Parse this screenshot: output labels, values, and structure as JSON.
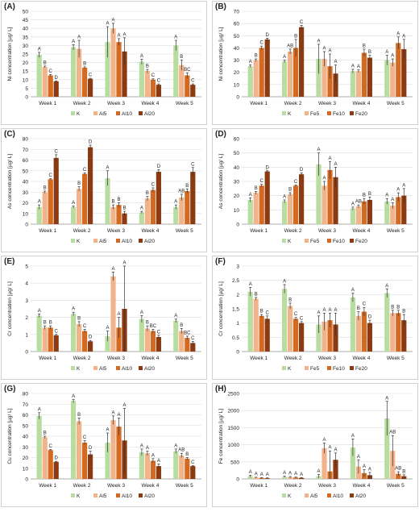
{
  "colors": [
    "#b9dca0",
    "#f2b38a",
    "#d46a22",
    "#8b3a12"
  ],
  "error_color": "#333333",
  "chart_data": [
    {
      "id": "A",
      "type": "bar",
      "panel_label": "(A)",
      "ylabel": "Ni concentration [µg/ L]",
      "ylim": [
        0,
        50
      ],
      "yticks": [
        0,
        5,
        10,
        15,
        20,
        25,
        30,
        35,
        40,
        45,
        50
      ],
      "categories": [
        "Week 1",
        "Week 2",
        "Week 3",
        "Week 4",
        "Week 5"
      ],
      "series": [
        {
          "name": "K",
          "values": [
            24.5,
            29,
            32,
            20.5,
            30
          ],
          "errors": [
            1.5,
            1.5,
            9,
            1.5,
            3
          ],
          "letters": [
            "A",
            "A",
            "A",
            "A",
            "A"
          ]
        },
        {
          "name": "Al5",
          "values": [
            17.5,
            28,
            40,
            15,
            18.5
          ],
          "errors": [
            0.5,
            5,
            3,
            1,
            3
          ],
          "letters": [
            "B",
            "A",
            "A",
            "B",
            "B"
          ]
        },
        {
          "name": "Al10",
          "values": [
            12.5,
            17,
            32,
            10,
            12.5
          ],
          "errors": [
            0.5,
            0.5,
            2,
            0.5,
            1.5
          ],
          "letters": [
            "C",
            "B",
            "A",
            "C",
            "BC"
          ]
        },
        {
          "name": "Al20",
          "values": [
            9,
            10.5,
            26.5,
            7,
            7
          ],
          "errors": [
            0.3,
            0.3,
            8,
            0.5,
            0.5
          ],
          "letters": [
            "D",
            "C",
            "A",
            "C",
            "C"
          ]
        }
      ]
    },
    {
      "id": "B",
      "type": "bar",
      "panel_label": "(B)",
      "ylabel": "Ni concentration [µg/ L]",
      "ylim": [
        0,
        70
      ],
      "yticks": [
        0,
        10,
        20,
        30,
        40,
        50,
        60,
        70
      ],
      "categories": [
        "Week 1",
        "Week 2",
        "Week 3",
        "Week 4",
        "Week 5"
      ],
      "series": [
        {
          "name": "K",
          "values": [
            25,
            29,
            31,
            21,
            30
          ],
          "errors": [
            1,
            1,
            12,
            1.5,
            4
          ],
          "letters": [
            "A",
            "A",
            "A",
            "A",
            "A"
          ]
        },
        {
          "name": "Fe5",
          "values": [
            30,
            37,
            31,
            21,
            28
          ],
          "errors": [
            1,
            2,
            6,
            1,
            3
          ],
          "letters": [
            "B",
            "AB",
            "A",
            "A",
            "A"
          ]
        },
        {
          "name": "Fe10",
          "values": [
            40,
            40,
            25,
            36,
            44
          ],
          "errors": [
            1.5,
            7,
            10,
            3,
            5
          ],
          "letters": [
            "C",
            "B",
            "A",
            "B",
            "A"
          ]
        },
        {
          "name": "Fe20",
          "values": [
            47,
            57,
            19,
            32,
            39
          ],
          "errors": [
            1,
            1.5,
            7,
            2,
            8
          ],
          "letters": [
            "D",
            "C",
            "A",
            "B",
            "A"
          ]
        }
      ]
    },
    {
      "id": "C",
      "type": "bar",
      "panel_label": "(C)",
      "ylabel": "As concentration [µg/ L]",
      "ylim": [
        0,
        80
      ],
      "yticks": [
        0,
        10,
        20,
        30,
        40,
        50,
        60,
        70,
        80
      ],
      "categories": [
        "Week 1",
        "Week 2",
        "Week 3",
        "Week 4",
        "Week 5"
      ],
      "series": [
        {
          "name": "K",
          "values": [
            16,
            16,
            43,
            11,
            16
          ],
          "errors": [
            2,
            1,
            7,
            1,
            2
          ],
          "letters": [
            "A",
            "A",
            "A",
            "A",
            "A"
          ]
        },
        {
          "name": "Al5",
          "values": [
            30,
            33,
            16,
            24,
            25
          ],
          "errors": [
            1,
            2,
            2,
            2,
            3
          ],
          "letters": [
            "B",
            "B",
            "B",
            "B",
            "AB"
          ]
        },
        {
          "name": "Al10",
          "values": [
            42,
            47,
            18,
            32,
            31
          ],
          "errors": [
            0.5,
            1,
            2,
            2,
            2
          ],
          "letters": [
            "C",
            "C",
            "B",
            "C",
            "B"
          ]
        },
        {
          "name": "Al20",
          "values": [
            62,
            72,
            10,
            49,
            49
          ],
          "errors": [
            3,
            2,
            2,
            2,
            4
          ],
          "letters": [
            "C",
            "D",
            "B",
            "D",
            "C"
          ]
        }
      ]
    },
    {
      "id": "D",
      "type": "bar",
      "panel_label": "(D)",
      "ylabel": "As concentration [µg/ L]",
      "ylim": [
        0,
        60
      ],
      "yticks": [
        0,
        10,
        20,
        30,
        40,
        50,
        60
      ],
      "categories": [
        "Week 1",
        "Week 2",
        "Week 3",
        "Week 4",
        "Week 5"
      ],
      "series": [
        {
          "name": "K",
          "values": [
            17,
            16,
            42,
            11,
            16
          ],
          "errors": [
            1.5,
            1,
            8,
            1,
            2
          ],
          "letters": [
            "A",
            "A",
            "A",
            "A",
            "A"
          ]
        },
        {
          "name": "Fe5",
          "values": [
            22,
            21,
            27,
            12.5,
            13
          ],
          "errors": [
            1,
            1,
            3,
            1,
            2
          ],
          "letters": [
            "B",
            "B",
            "A",
            "AB",
            "A"
          ]
        },
        {
          "name": "Fe10",
          "values": [
            27,
            27,
            38,
            16,
            19
          ],
          "errors": [
            1,
            0.5,
            6,
            2,
            3
          ],
          "letters": [
            "C",
            "C",
            "A",
            "B",
            "A"
          ]
        },
        {
          "name": "Fe20",
          "values": [
            37,
            35,
            33,
            17,
            20
          ],
          "errors": [
            0.5,
            1,
            7,
            2,
            5
          ],
          "letters": [
            "D",
            "D",
            "A",
            "B",
            "A"
          ]
        }
      ]
    },
    {
      "id": "E",
      "type": "bar",
      "panel_label": "(E)",
      "ylabel": "Cr concentration [µg/ L]",
      "ylim": [
        0,
        5
      ],
      "yticks": [
        0,
        1,
        2,
        3,
        4,
        5
      ],
      "categories": [
        "Week 1",
        "Week 2",
        "Week 3",
        "Week 4",
        "Week 5"
      ],
      "series": [
        {
          "name": "K",
          "values": [
            2.1,
            2.2,
            0.9,
            1.9,
            1.8
          ],
          "errors": [
            0.1,
            0.1,
            0.3,
            0.2,
            0.1
          ],
          "letters": [
            "A",
            "A",
            "A",
            "A",
            "A"
          ]
        },
        {
          "name": "Al5",
          "values": [
            1.4,
            1.6,
            4.4,
            1.35,
            1.2
          ],
          "errors": [
            0.1,
            0.15,
            0.25,
            0.15,
            0.15
          ],
          "letters": [
            "B",
            "B",
            "A",
            "B",
            "B"
          ]
        },
        {
          "name": "Al10",
          "values": [
            1.4,
            1.2,
            1.4,
            1.2,
            0.8
          ],
          "errors": [
            0.1,
            0.1,
            0.6,
            0.1,
            0.1
          ],
          "letters": [
            "B",
            "C",
            "A",
            "BC",
            "BC"
          ]
        },
        {
          "name": "Al20",
          "values": [
            0.95,
            0.6,
            2.5,
            0.85,
            0.5
          ],
          "errors": [
            0.05,
            0.05,
            2.5,
            0.1,
            0.1
          ],
          "letters": [
            "C",
            "D",
            "A",
            "C",
            "C"
          ]
        }
      ]
    },
    {
      "id": "F",
      "type": "bar",
      "panel_label": "(F)",
      "ylabel": "Cr concentration [µg/ L]",
      "ylim": [
        0,
        3
      ],
      "yticks": [
        0,
        0.5,
        1,
        1.5,
        2,
        2.5,
        3
      ],
      "categories": [
        "Week 1",
        "Week 2",
        "Week 3",
        "Week 4",
        "Week 5"
      ],
      "series": [
        {
          "name": "K",
          "values": [
            2.1,
            2.2,
            0.95,
            1.9,
            2.05
          ],
          "errors": [
            0.15,
            0.15,
            0.3,
            0.15,
            0.15
          ],
          "letters": [
            "A",
            "A",
            "A",
            "A",
            "A"
          ]
        },
        {
          "name": "Fe5",
          "values": [
            1.85,
            1.6,
            1.05,
            1.25,
            1.35
          ],
          "errors": [
            0.05,
            0.1,
            0.3,
            0.15,
            0.1
          ],
          "letters": [
            "B",
            "B",
            "A",
            "B",
            "B"
          ]
        },
        {
          "name": "Fe10",
          "values": [
            1.25,
            1.15,
            1.1,
            1.4,
            1.35
          ],
          "errors": [
            0.05,
            0.05,
            0.25,
            0.15,
            0.1
          ],
          "letters": [
            "B",
            "C",
            "A",
            "C",
            "B"
          ]
        },
        {
          "name": "Fe20",
          "values": [
            1.15,
            1.0,
            0.95,
            1.0,
            1.1
          ],
          "errors": [
            0.1,
            0.05,
            0.4,
            0.1,
            0.2
          ],
          "letters": [
            "C",
            "C",
            "A",
            "D",
            "B"
          ]
        }
      ]
    },
    {
      "id": "G",
      "type": "bar",
      "panel_label": "(G)",
      "ylabel": "Cu concentration [µg/ L]",
      "ylim": [
        0,
        80
      ],
      "yticks": [
        0,
        10,
        20,
        30,
        40,
        50,
        60,
        70,
        80
      ],
      "categories": [
        "Week 1",
        "Week 2",
        "Week 3",
        "Week 4",
        "Week 5"
      ],
      "series": [
        {
          "name": "K",
          "values": [
            59,
            73,
            34,
            25,
            26
          ],
          "errors": [
            3,
            1.5,
            9,
            3,
            2
          ],
          "letters": [
            "A",
            "A",
            "A",
            "A",
            "A"
          ]
        },
        {
          "name": "Al5",
          "values": [
            39,
            54,
            55,
            24,
            22
          ],
          "errors": [
            1,
            3,
            4,
            2,
            2
          ],
          "letters": [
            "B",
            "B",
            "A",
            "A",
            "AB"
          ]
        },
        {
          "name": "Al10",
          "values": [
            27,
            34,
            49,
            17,
            19
          ],
          "errors": [
            0.5,
            2,
            8,
            2,
            1
          ],
          "letters": [
            "C",
            "C",
            "A",
            "A",
            "B"
          ]
        },
        {
          "name": "Al20",
          "values": [
            16,
            23,
            36,
            12,
            12
          ],
          "errors": [
            0.5,
            3,
            30,
            2,
            0.5
          ],
          "letters": [
            "D",
            "D",
            "A",
            "A",
            "C"
          ]
        }
      ]
    },
    {
      "id": "H",
      "type": "bar",
      "panel_label": "(H)",
      "ylabel": "Fe concentration [µg/ L]",
      "ylim": [
        0,
        2500
      ],
      "yticks": [
        0,
        500,
        1000,
        1500,
        2000,
        2500
      ],
      "categories": [
        "Week 1",
        "Week 2",
        "Week 3",
        "Week 4",
        "Week 5"
      ],
      "series": [
        {
          "name": "K",
          "values": [
            80,
            60,
            80,
            920,
            1770
          ],
          "errors": [
            30,
            20,
            50,
            250,
            500
          ],
          "letters": [
            "A",
            "A",
            "A",
            "A",
            "A"
          ]
        },
        {
          "name": "Al5",
          "values": [
            40,
            50,
            900,
            360,
            820
          ],
          "errors": [
            10,
            20,
            150,
            200,
            450
          ],
          "letters": [
            "A",
            "A",
            "A",
            "A",
            "AB"
          ]
        },
        {
          "name": "Al10",
          "values": [
            30,
            40,
            220,
            170,
            150
          ],
          "errors": [
            10,
            15,
            600,
            100,
            60
          ],
          "letters": [
            "A",
            "A",
            "A",
            "A",
            "AB"
          ]
        },
        {
          "name": "Al20",
          "values": [
            20,
            30,
            560,
            110,
            80
          ],
          "errors": [
            10,
            10,
            200,
            80,
            40
          ],
          "letters": [
            "A",
            "A",
            "A",
            "A",
            "B"
          ]
        }
      ]
    }
  ]
}
